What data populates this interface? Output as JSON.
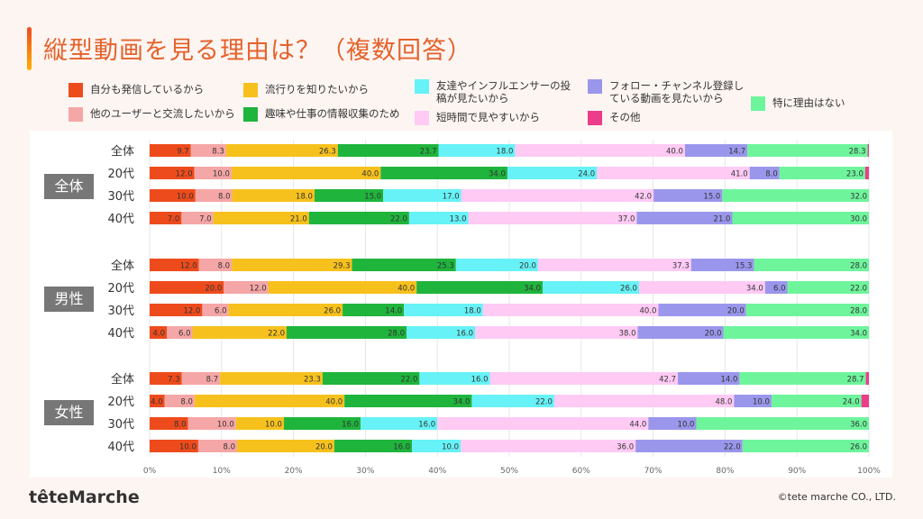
{
  "title": "縦型動画を見る理由は？（複数回答）",
  "logo": "têteMarche",
  "copyright": "©tete marche CO., LTD.",
  "colors": {
    "accent": "#e4622b",
    "series": [
      "#ee4b1c",
      "#f5a6a6",
      "#f7c11d",
      "#1fb43c",
      "#66f2f7",
      "#ffcaf4",
      "#9a96ec",
      "#6ef59c",
      "#ec3d8b"
    ]
  },
  "chart_data": {
    "type": "bar",
    "orientation": "horizontal-stacked",
    "xlim": [
      0,
      100
    ],
    "x_ticks": [
      "0%",
      "10%",
      "20%",
      "30%",
      "40%",
      "50%",
      "60%",
      "70%",
      "80%",
      "90%",
      "100%"
    ],
    "series": [
      {
        "name": "自分も発信しているから"
      },
      {
        "name": "他のユーザーと交流したいから"
      },
      {
        "name": "流行りを知りたいから"
      },
      {
        "name": "趣味や仕事の情報収集のため"
      },
      {
        "name": "友達やインフルエンサーの投稿が見たいから"
      },
      {
        "name": "短時間で見やすいから"
      },
      {
        "name": "フォロー・チャンネル登録している動画を見たいから"
      },
      {
        "name": "特に理由はない"
      },
      {
        "name": "その他"
      }
    ],
    "groups": [
      {
        "label": "全体",
        "rows": [
          {
            "label": "全体",
            "values": [
              9.7,
              8.3,
              26.3,
              23.7,
              18.0,
              40.0,
              14.7,
              28.3,
              0.3
            ]
          },
          {
            "label": "20代",
            "values": [
              12.0,
              10.0,
              40.0,
              34.0,
              24.0,
              41.0,
              8.0,
              23.0,
              1.0
            ]
          },
          {
            "label": "30代",
            "values": [
              10.0,
              8.0,
              18.0,
              15.0,
              17.0,
              42.0,
              15.0,
              32.0,
              0
            ]
          },
          {
            "label": "40代",
            "values": [
              7.0,
              7.0,
              21.0,
              22.0,
              13.0,
              37.0,
              21.0,
              30.0,
              0
            ]
          }
        ]
      },
      {
        "label": "男性",
        "rows": [
          {
            "label": "全体",
            "values": [
              12.0,
              8.0,
              29.3,
              25.3,
              20.0,
              37.3,
              15.3,
              28.0,
              0
            ]
          },
          {
            "label": "20代",
            "values": [
              20.0,
              12.0,
              40.0,
              34.0,
              26.0,
              34.0,
              6.0,
              22.0,
              0
            ]
          },
          {
            "label": "30代",
            "values": [
              12.0,
              6.0,
              26.0,
              14.0,
              18.0,
              40.0,
              20.0,
              28.0,
              0
            ]
          },
          {
            "label": "40代",
            "values": [
              4.0,
              6.0,
              22.0,
              28.0,
              16.0,
              38.0,
              20.0,
              34.0,
              0
            ]
          }
        ]
      },
      {
        "label": "女性",
        "rows": [
          {
            "label": "全体",
            "values": [
              7.3,
              8.7,
              23.3,
              22.0,
              16.0,
              42.7,
              14.0,
              28.7,
              0.7
            ]
          },
          {
            "label": "20代",
            "values": [
              4.0,
              8.0,
              40.0,
              34.0,
              22.0,
              48.0,
              10.0,
              24.0,
              2.0
            ]
          },
          {
            "label": "30代",
            "values": [
              8.0,
              10.0,
              10.0,
              16.0,
              16.0,
              44.0,
              10.0,
              36.0,
              0
            ]
          },
          {
            "label": "40代",
            "values": [
              10.0,
              8.0,
              20.0,
              16.0,
              10.0,
              36.0,
              22.0,
              26.0,
              0
            ]
          }
        ]
      }
    ]
  }
}
